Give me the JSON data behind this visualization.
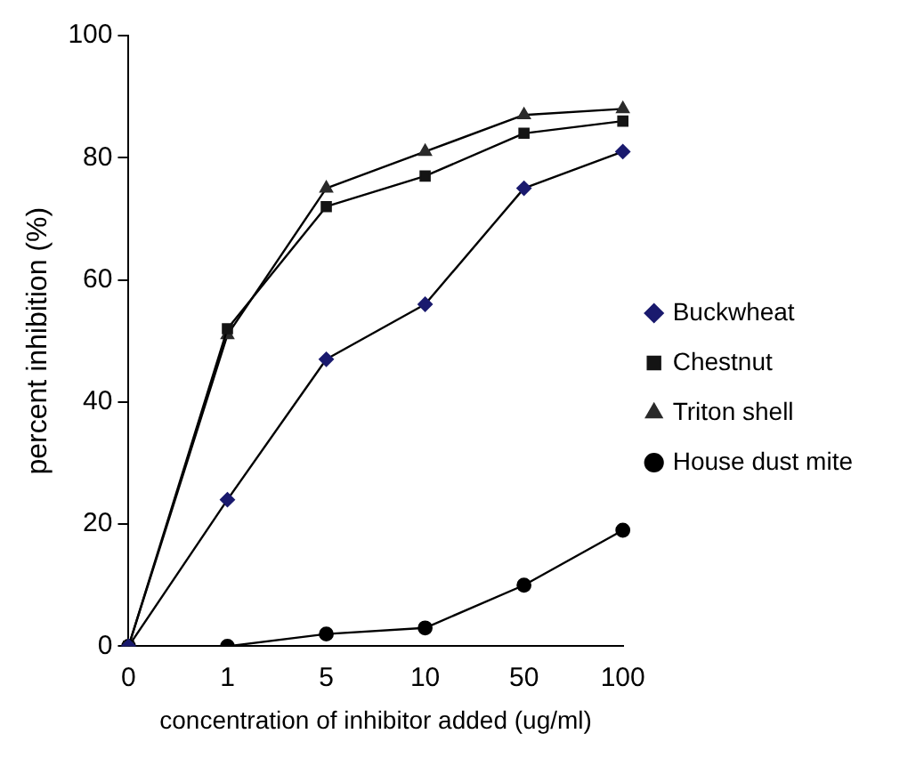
{
  "chart_data": {
    "type": "line",
    "xlabel": "concentration of inhibitor added (ug/ml)",
    "ylabel": "percent inhibition (%)",
    "categories": [
      "0",
      "1",
      "5",
      "10",
      "50",
      "100"
    ],
    "ylim": [
      0,
      100
    ],
    "yticks": [
      0,
      20,
      40,
      60,
      80,
      100
    ],
    "legend": "right",
    "grid": false,
    "line_style": "solid",
    "series": [
      {
        "name": "Buckwheat",
        "color": "#1a1a6e",
        "marker": "diamond",
        "values": [
          0,
          24,
          47,
          56,
          75,
          81
        ]
      },
      {
        "name": "Chestnut",
        "color": "#141414",
        "marker": "square",
        "values": [
          0,
          52,
          72,
          77,
          84,
          86
        ]
      },
      {
        "name": "Triton shell",
        "color": "#2a2a2a",
        "marker": "triangle",
        "values": [
          0,
          51,
          75,
          81,
          87,
          88
        ]
      },
      {
        "name": "House dust mite",
        "color": "#000000",
        "marker": "circle",
        "values": [
          0,
          0,
          2,
          3,
          10,
          19
        ]
      }
    ]
  }
}
